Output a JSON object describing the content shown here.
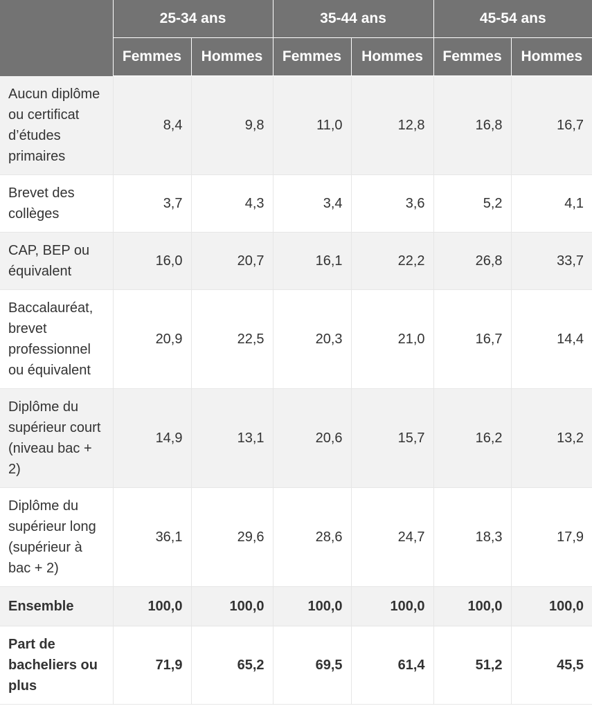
{
  "header": {
    "age_groups": [
      "25-34 ans",
      "35-44 ans",
      "45-54 ans"
    ],
    "sexes": [
      "Femmes",
      "Hommes",
      "Femmes",
      "Hommes",
      "Femmes",
      "Hommes"
    ]
  },
  "rows": [
    {
      "label": "Aucun diplôme ou certificat d’études primaires",
      "values": [
        "8,4",
        "9,8",
        "11,0",
        "12,8",
        "16,8",
        "16,7"
      ]
    },
    {
      "label": "Brevet des collèges",
      "values": [
        "3,7",
        "4,3",
        "3,4",
        "3,6",
        "5,2",
        "4,1"
      ]
    },
    {
      "label": "CAP, BEP ou équivalent",
      "values": [
        "16,0",
        "20,7",
        "16,1",
        "22,2",
        "26,8",
        "33,7"
      ]
    },
    {
      "label": "Baccalauréat, brevet professionnel ou équivalent",
      "values": [
        "20,9",
        "22,5",
        "20,3",
        "21,0",
        "16,7",
        "14,4"
      ]
    },
    {
      "label": "Diplôme du supérieur court (niveau bac + 2)",
      "values": [
        "14,9",
        "13,1",
        "20,6",
        "15,7",
        "16,2",
        "13,2"
      ]
    },
    {
      "label": "Diplôme du supérieur long (supérieur à bac + 2)",
      "values": [
        "36,1",
        "29,6",
        "28,6",
        "24,7",
        "18,3",
        "17,9"
      ]
    },
    {
      "label": "Ensemble",
      "values": [
        "100,0",
        "100,0",
        "100,0",
        "100,0",
        "100,0",
        "100,0"
      ]
    },
    {
      "label": "Part de bacheliers ou plus",
      "values": [
        "71,9",
        "65,2",
        "69,5",
        "61,4",
        "51,2",
        "45,5"
      ]
    }
  ]
}
